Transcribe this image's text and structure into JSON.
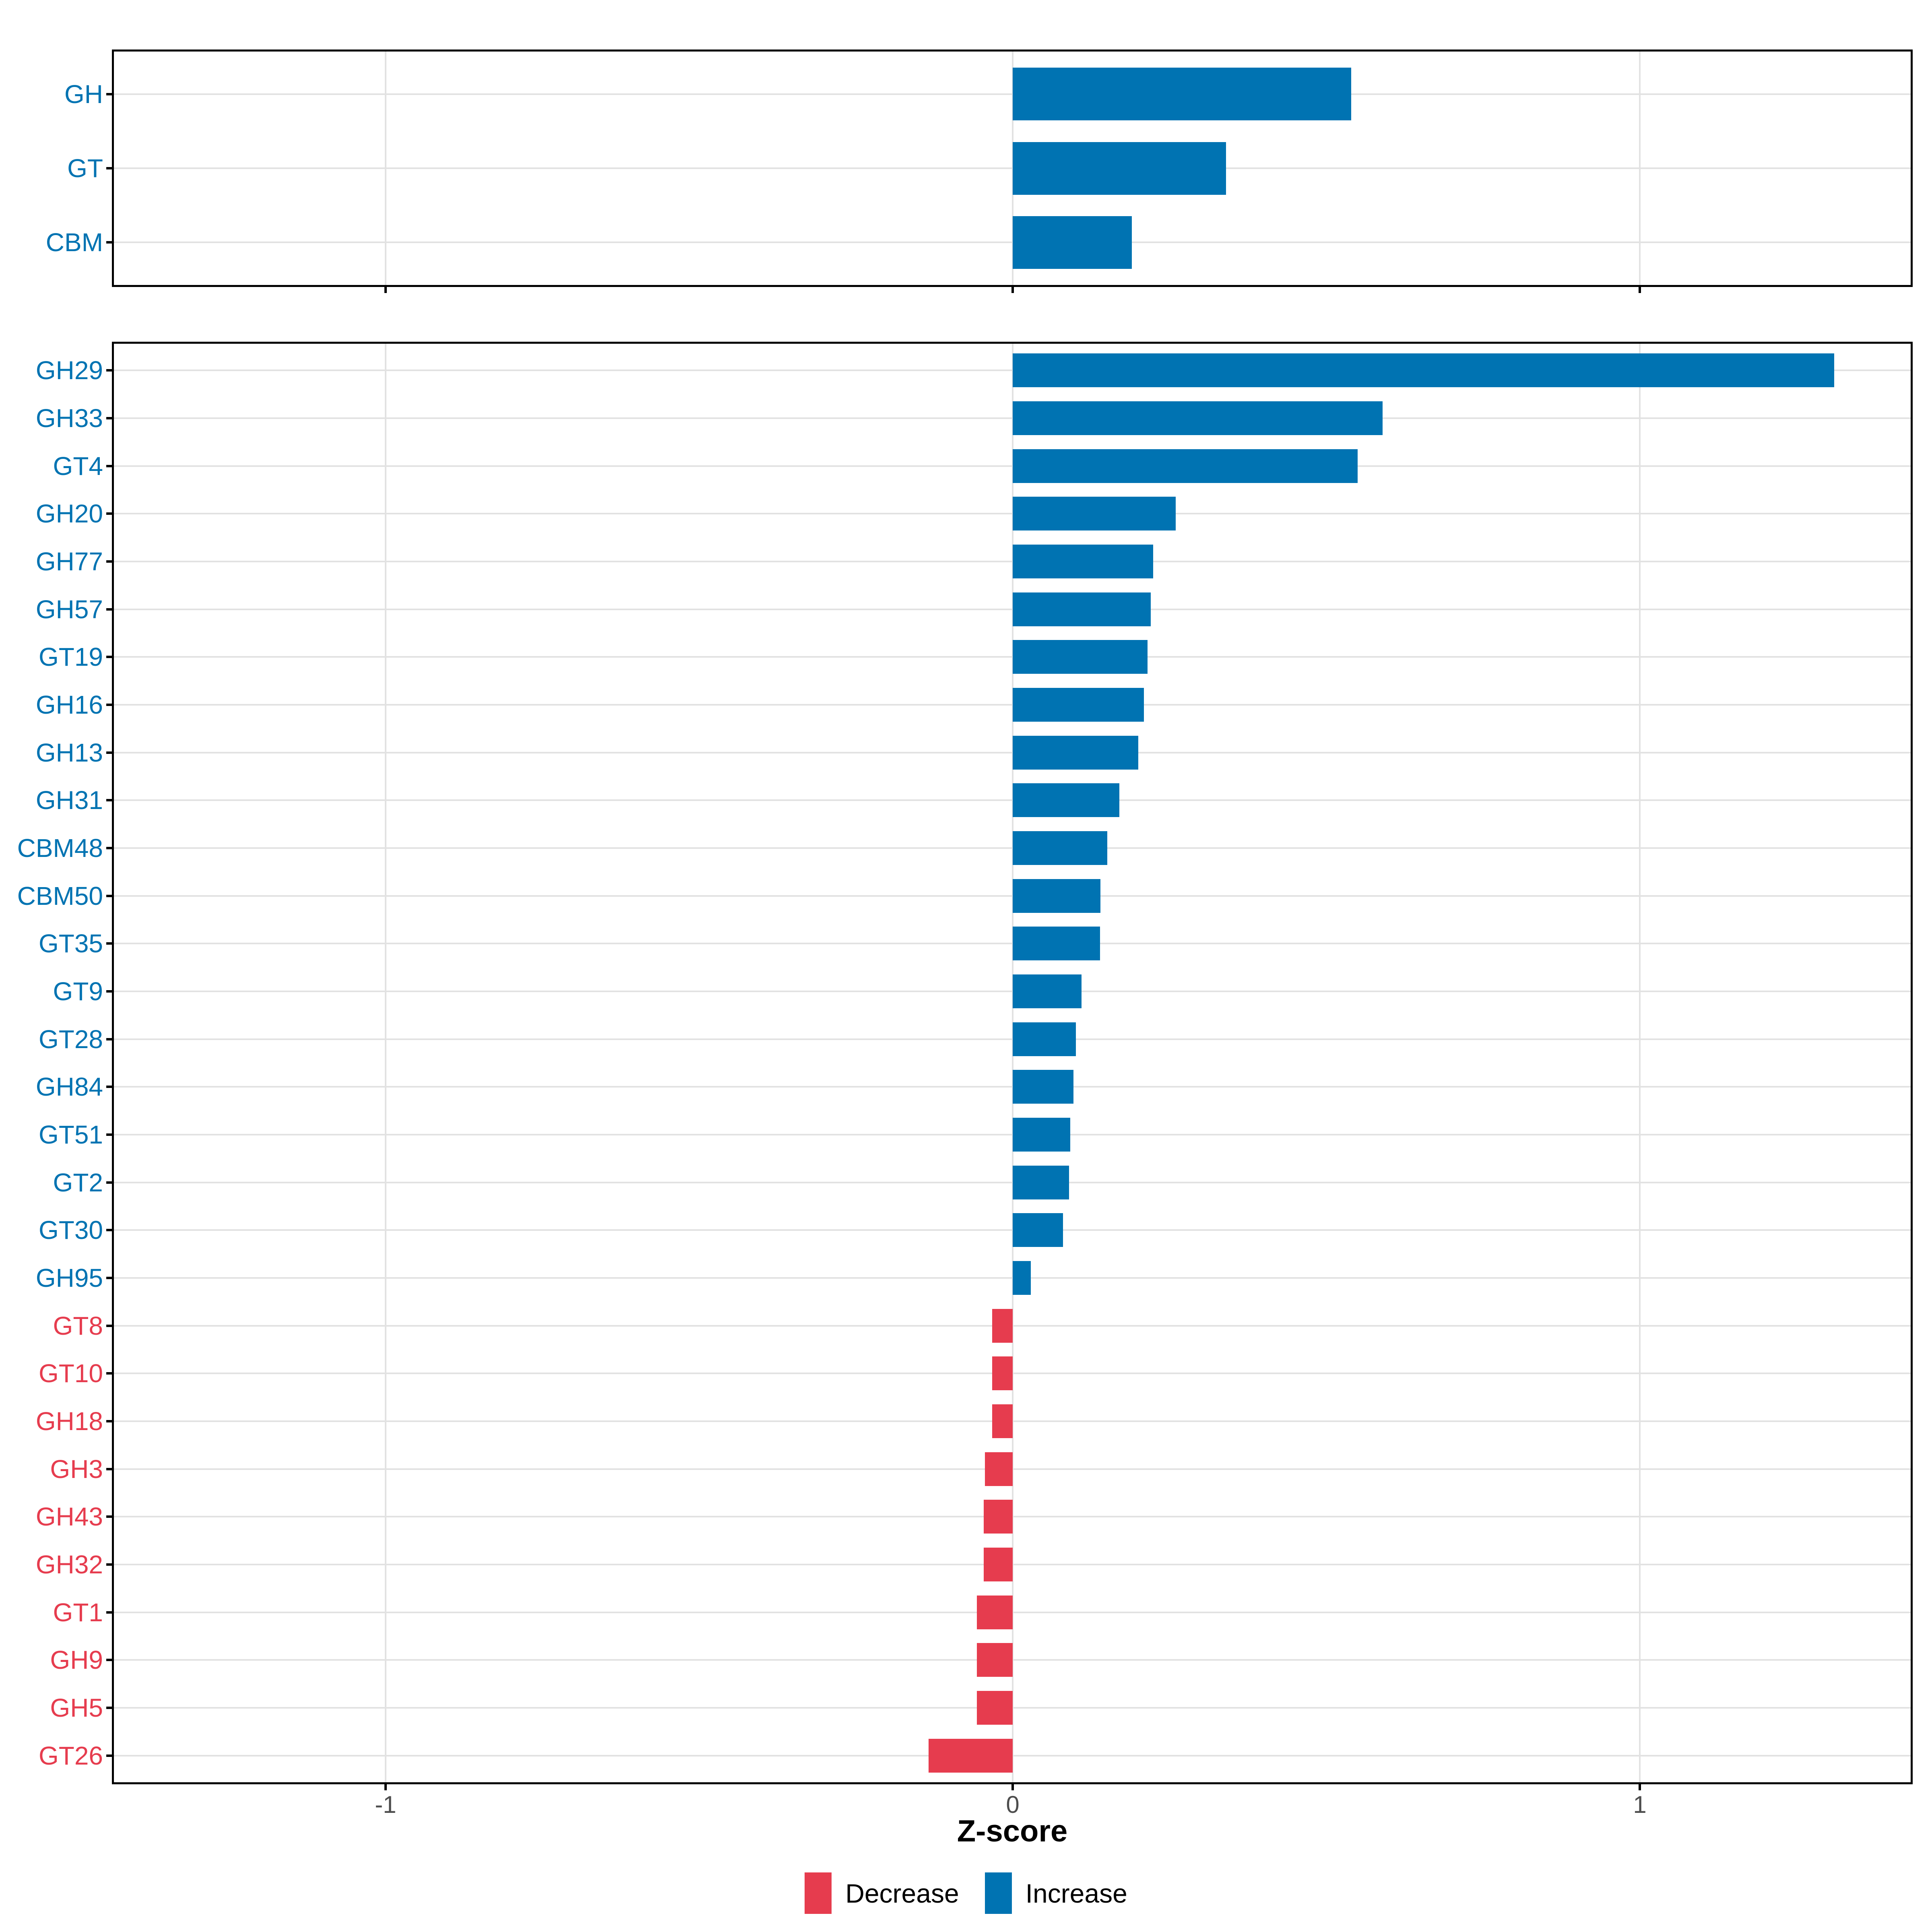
{
  "chart_data": [
    {
      "type": "bar",
      "orientation": "horizontal",
      "panel": "cazyme-class",
      "categories": [
        "GH",
        "GT",
        "CBM"
      ],
      "values": [
        0.54,
        0.34,
        0.19
      ],
      "directions": [
        "increase",
        "increase",
        "increase"
      ],
      "xlim": [
        -1.435,
        1.435
      ],
      "grid": "on"
    },
    {
      "type": "bar",
      "orientation": "horizontal",
      "panel": "cazyme-family",
      "categories": [
        "GH29",
        "GH33",
        "GT4",
        "GH20",
        "GH77",
        "GH57",
        "GT19",
        "GH16",
        "GH13",
        "GH31",
        "CBM48",
        "CBM50",
        "GT35",
        "GT9",
        "GT28",
        "GH84",
        "GT51",
        "GT2",
        "GT30",
        "GH95",
        "GT8",
        "GT10",
        "GH18",
        "GH3",
        "GH43",
        "GH32",
        "GT1",
        "GH9",
        "GH5",
        "GT26"
      ],
      "values": [
        1.31,
        0.59,
        0.55,
        0.26,
        0.224,
        0.22,
        0.215,
        0.209,
        0.2,
        0.17,
        0.151,
        0.14,
        0.139,
        0.11,
        0.101,
        0.097,
        0.092,
        0.09,
        0.08,
        0.029,
        -0.033,
        -0.033,
        -0.033,
        -0.044,
        -0.046,
        -0.046,
        -0.057,
        -0.057,
        -0.057,
        -0.134
      ],
      "directions": [
        "increase",
        "increase",
        "increase",
        "increase",
        "increase",
        "increase",
        "increase",
        "increase",
        "increase",
        "increase",
        "increase",
        "increase",
        "increase",
        "increase",
        "increase",
        "increase",
        "increase",
        "increase",
        "increase",
        "increase",
        "decrease",
        "decrease",
        "decrease",
        "decrease",
        "decrease",
        "decrease",
        "decrease",
        "decrease",
        "decrease",
        "decrease"
      ],
      "xlabel": "Z-score",
      "xlim": [
        -1.435,
        1.435
      ],
      "grid": "on"
    }
  ],
  "axis": {
    "title": "Z-score",
    "tick_labels": [
      "-1",
      "0",
      "1"
    ],
    "tick_values": [
      -1,
      0,
      1
    ]
  },
  "legend": {
    "position": "bottom",
    "items": [
      {
        "label": "Decrease",
        "color": "#e63c4e"
      },
      {
        "label": "Increase",
        "color": "#0073b2"
      }
    ]
  },
  "colors": {
    "increase": "#0073b2",
    "decrease": "#e63c4e",
    "gridline": "#e2e2e2",
    "axis_text": "#4d4d4d",
    "panel_border": "#000000"
  }
}
